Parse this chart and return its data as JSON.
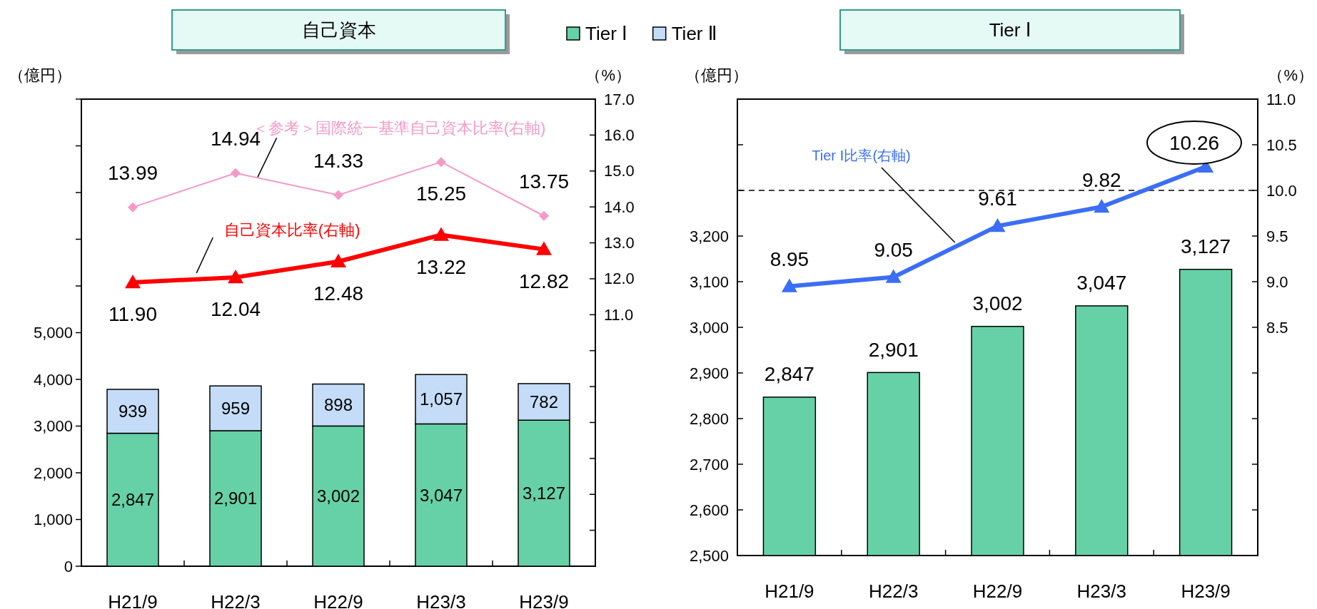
{
  "chart_data": [
    {
      "type": "bar",
      "title": "自己資本",
      "stacked": true,
      "legend": "top",
      "ylabel": "（億円）",
      "y2label": "（%）",
      "categories": [
        "H21/9",
        "H22/3",
        "H22/9",
        "H23/3",
        "H23/9"
      ],
      "ylim": [
        0,
        10000
      ],
      "yticks": [
        0,
        {
          "value": 1000,
          "label": "1,000"
        },
        {
          "value": 2000,
          "label": "2,000"
        },
        {
          "value": 3000,
          "label": "3,000"
        },
        {
          "value": 4000,
          "label": "4,000"
        },
        {
          "value": 5000,
          "label": "5,000"
        },
        {
          "value": 6000,
          "label": null
        },
        {
          "value": 7000,
          "label": null
        },
        {
          "value": 8000,
          "label": null
        },
        {
          "value": 9000,
          "label": null
        },
        {
          "value": 10000,
          "label": null
        }
      ],
      "y2lim": [
        4,
        17
      ],
      "y2ticks": [
        {
          "value": 4,
          "label": null
        },
        {
          "value": 5,
          "label": null
        },
        {
          "value": 6,
          "label": null
        },
        {
          "value": 7,
          "label": null
        },
        {
          "value": 8,
          "label": null
        },
        {
          "value": 9,
          "label": null
        },
        {
          "value": 10,
          "label": null
        },
        {
          "value": 11,
          "label": "11.0"
        },
        {
          "value": 12,
          "label": "12.0"
        },
        {
          "value": 13,
          "label": "13.0"
        },
        {
          "value": 14,
          "label": "14.0"
        },
        {
          "value": 15,
          "label": "15.0"
        },
        {
          "value": 16,
          "label": "16.0"
        },
        {
          "value": 17,
          "label": "17.0"
        }
      ],
      "series": [
        {
          "name": "Tier Ⅰ",
          "color": "#66d1a6",
          "values": [
            2847,
            2901,
            3002,
            3047,
            3127
          ],
          "value_labels": [
            "2,847",
            "2,901",
            "3,002",
            "3,047",
            "3,127"
          ]
        },
        {
          "name": "Tier Ⅱ",
          "color": "#c4dcf7",
          "values": [
            939,
            959,
            898,
            1057,
            782
          ],
          "value_labels": [
            "939",
            "959",
            "898",
            "1,057",
            "782"
          ]
        },
        {
          "name": "＜参考＞国際統一基準自己資本比率(右軸)",
          "type": "line",
          "axis": "y2",
          "marker": "diamond",
          "color": "#f59ac8",
          "values": [
            13.99,
            14.94,
            14.33,
            15.25,
            13.75
          ],
          "value_labels": [
            "13.99",
            "14.94",
            "14.33",
            "15.25",
            "13.75"
          ]
        },
        {
          "name": "自己資本比率(右軸)",
          "type": "line",
          "axis": "y2",
          "marker": "triangle",
          "color": "#ff0000",
          "values": [
            11.9,
            12.04,
            12.48,
            13.22,
            12.82
          ],
          "value_labels": [
            "11.90",
            "12.04",
            "12.48",
            "13.22",
            "12.82"
          ]
        }
      ]
    },
    {
      "type": "bar",
      "title": "Tier Ⅰ",
      "ylabel": "（億円）",
      "y2label": "（%）",
      "categories": [
        "H21/9",
        "H22/3",
        "H22/9",
        "H23/3",
        "H23/9"
      ],
      "ylim": [
        2500,
        3500
      ],
      "yticks": [
        {
          "value": 2500,
          "label": "2,500"
        },
        {
          "value": 2600,
          "label": "2,600"
        },
        {
          "value": 2700,
          "label": "2,700"
        },
        {
          "value": 2800,
          "label": "2,800"
        },
        {
          "value": 2900,
          "label": "2,900"
        },
        {
          "value": 3000,
          "label": "3,000"
        },
        {
          "value": 3100,
          "label": "3,100"
        },
        {
          "value": 3200,
          "label": "3,200"
        },
        {
          "value": 3300,
          "label": null
        },
        {
          "value": 3400,
          "label": null
        },
        {
          "value": 3500,
          "label": null
        }
      ],
      "y2lim": [
        6,
        11
      ],
      "y2ticks": [
        {
          "value": 6,
          "label": null
        },
        {
          "value": 6.5,
          "label": null
        },
        {
          "value": 7,
          "label": null
        },
        {
          "value": 7.5,
          "label": null
        },
        {
          "value": 8,
          "label": null
        },
        {
          "value": 8.5,
          "label": "8.5"
        },
        {
          "value": 9,
          "label": "9.0"
        },
        {
          "value": 9.5,
          "label": "9.5"
        },
        {
          "value": 10,
          "label": "10.0"
        },
        {
          "value": 10.5,
          "label": "10.5"
        },
        {
          "value": 11,
          "label": "11.0"
        }
      ],
      "ref_lines": [
        {
          "axis": "y2",
          "value": 10,
          "color": "#000000",
          "line_style": "dashed"
        }
      ],
      "annotations": [
        "10.26"
      ],
      "series": [
        {
          "color": "#66d1a6",
          "values": [
            2847,
            2901,
            3002,
            3047,
            3127
          ],
          "value_labels": [
            "2,847",
            "2,901",
            "3,002",
            "3,047",
            "3,127"
          ]
        },
        {
          "name": "Tier Ⅰ比率(右軸)",
          "type": "line",
          "axis": "y2",
          "marker": "triangle",
          "color": "#3b6ef5",
          "values": [
            8.95,
            9.05,
            9.61,
            9.82,
            10.26
          ],
          "value_labels": [
            "8.95",
            "9.05",
            "9.61",
            "9.82",
            null
          ]
        }
      ]
    }
  ]
}
